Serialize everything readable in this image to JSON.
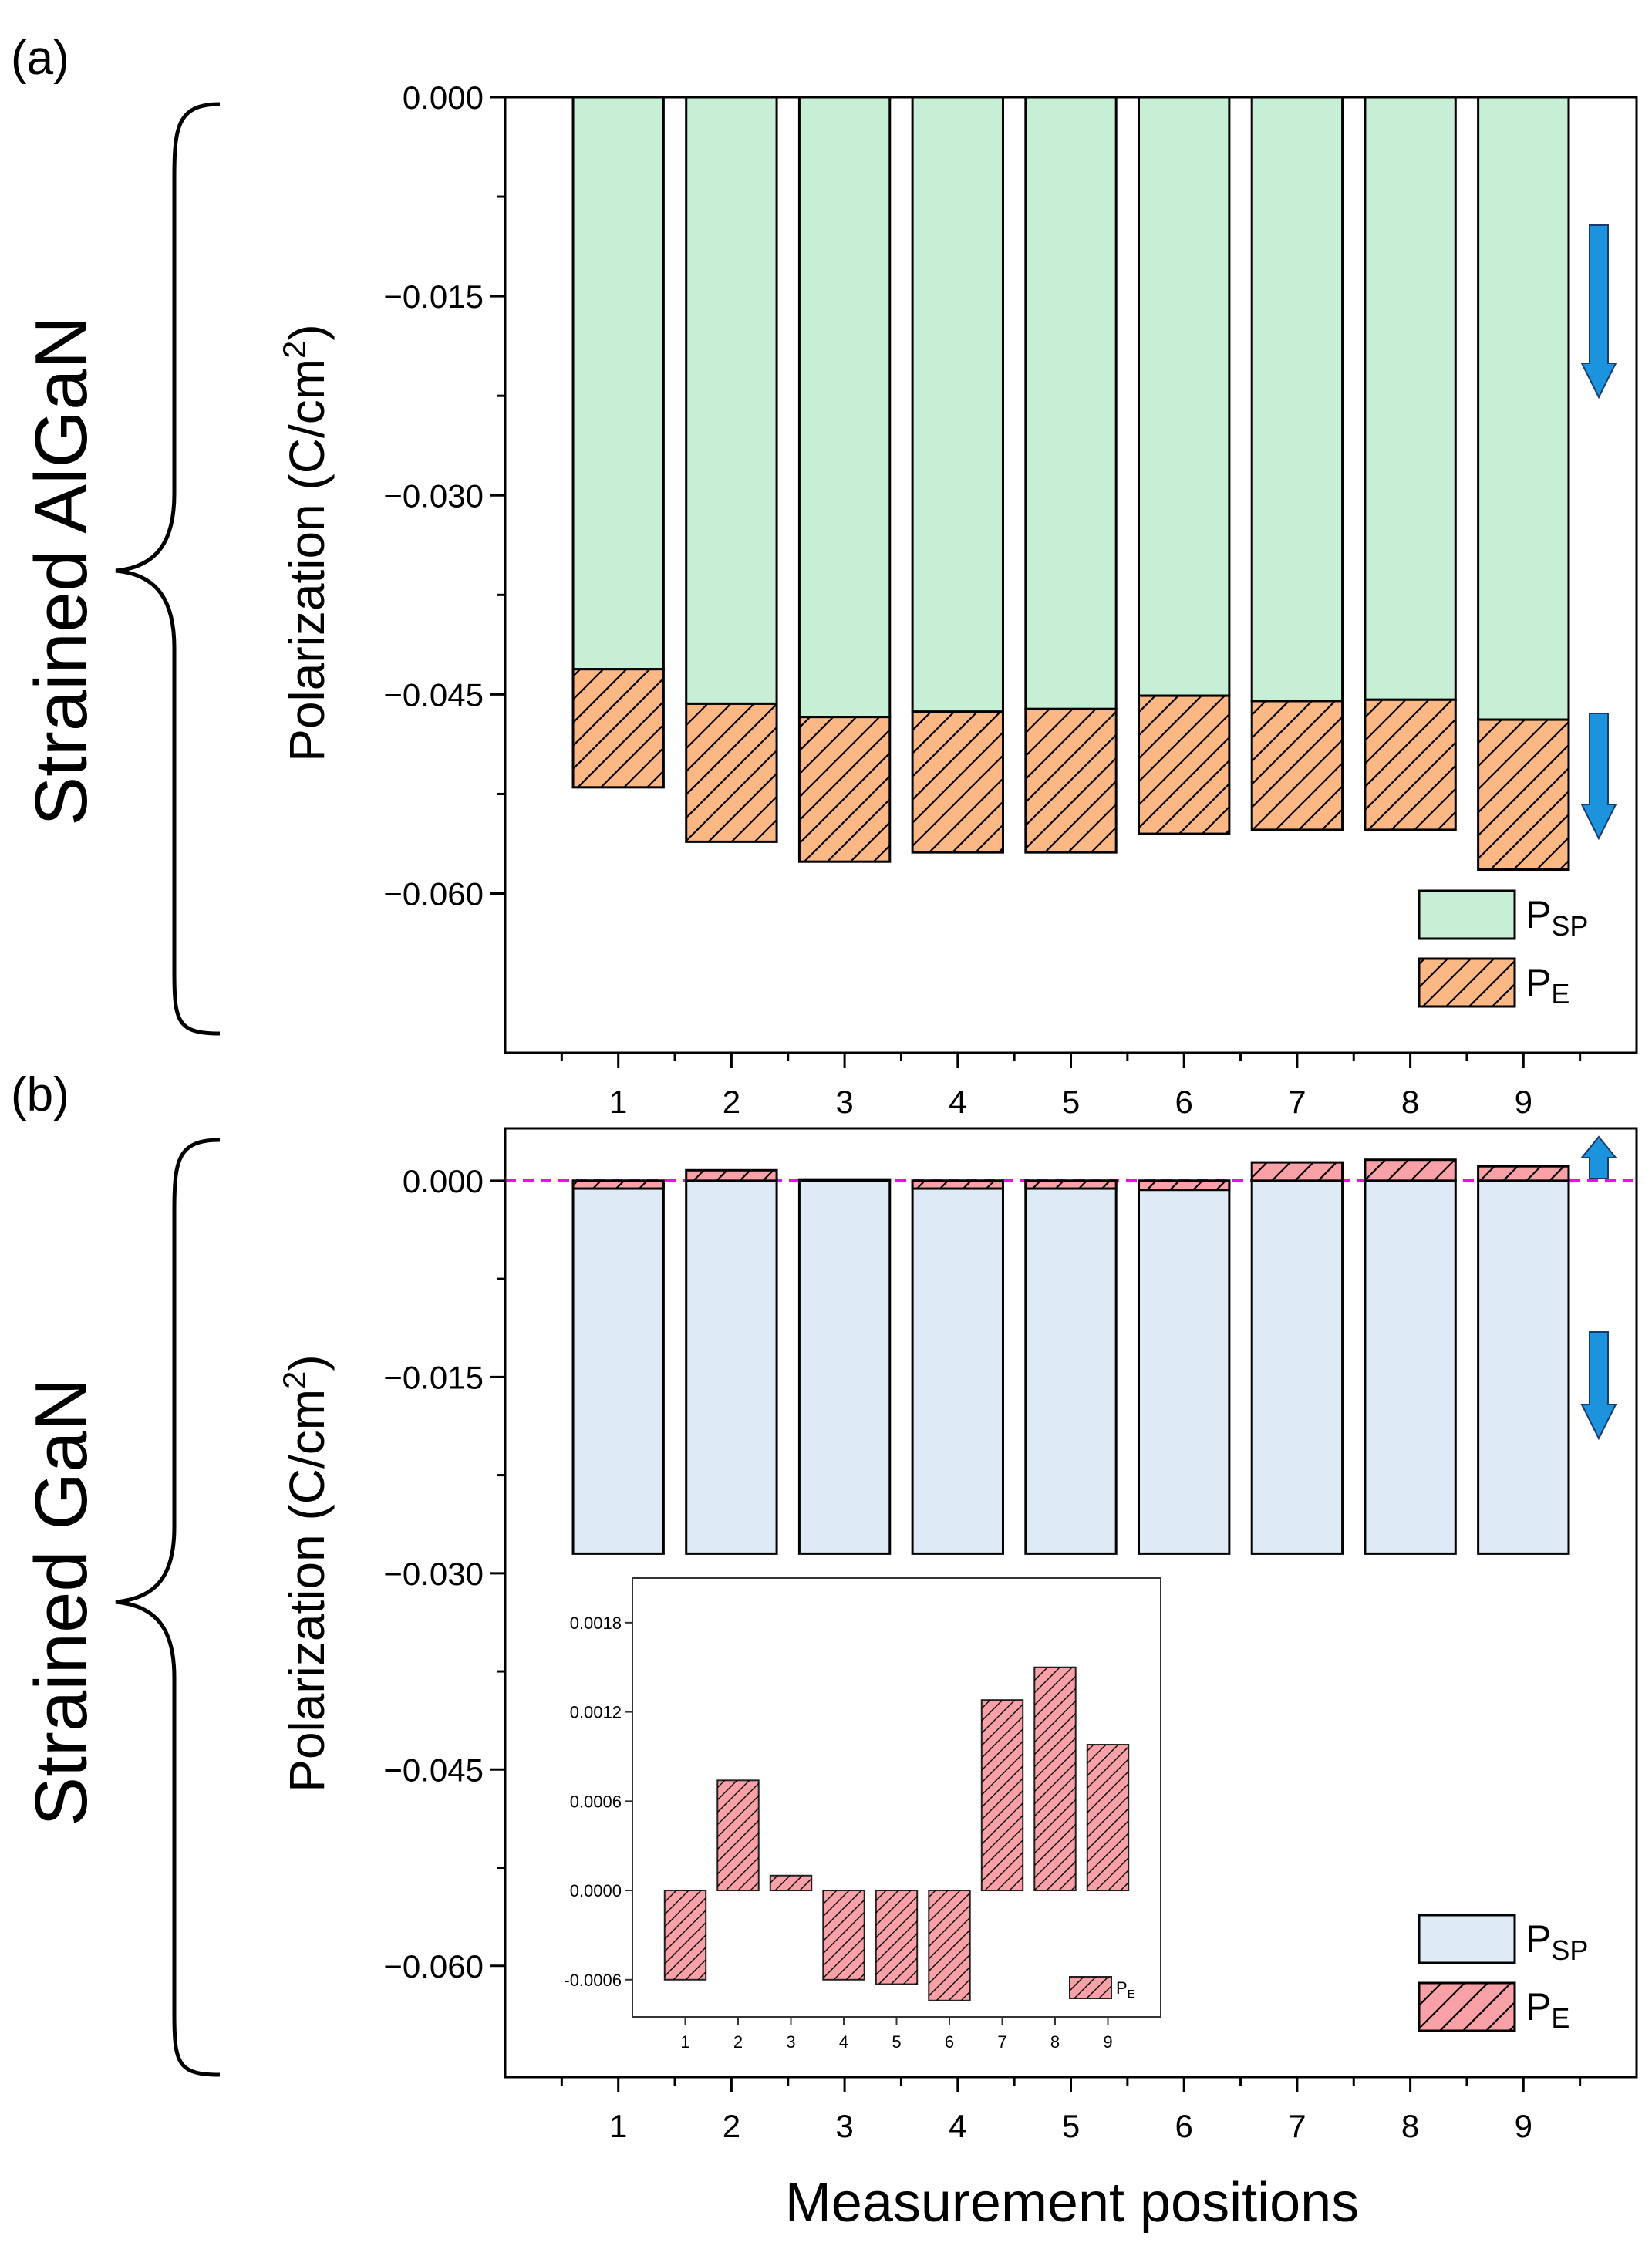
{
  "figure": {
    "panel_labels": [
      "(a)",
      "(b)"
    ],
    "side_labels": [
      "Strained AlGaN",
      "Strained GaN"
    ],
    "xlabel": "Measurement positions"
  },
  "colors": {
    "psp_algan": "#c6efd6",
    "pe_algan": "#fbb784",
    "psp_gan": "#deebf7",
    "pe_gan": "#f9a1a6",
    "pe_inset": "#f9a1a6",
    "arrow": "#1b94dd",
    "zero_line": "#ff00ff"
  },
  "chart_data": [
    {
      "type": "bar",
      "stacked": true,
      "panel": "(a)",
      "ylabel": "Polarization (C/cm",
      "ylabel_sup": "2",
      "ylabel_end": ")",
      "ylim": [
        -0.072,
        0.0
      ],
      "yticks": [
        0.0,
        -0.015,
        -0.03,
        -0.045,
        -0.06
      ],
      "ytick_labels": [
        "0.000",
        "−0.015",
        "−0.030",
        "−0.045",
        "−0.060"
      ],
      "categories": [
        "1",
        "2",
        "3",
        "4",
        "5",
        "6",
        "7",
        "8",
        "9"
      ],
      "series": [
        {
          "name": "P",
          "name_sub": "SP",
          "values": [
            -0.0431,
            -0.0457,
            -0.0467,
            -0.0463,
            -0.0461,
            -0.0451,
            -0.0455,
            -0.0454,
            -0.0469
          ]
        },
        {
          "name": "P",
          "name_sub": "E",
          "values": [
            -0.0089,
            -0.0104,
            -0.0109,
            -0.0106,
            -0.0108,
            -0.0104,
            -0.0097,
            -0.0098,
            -0.0113
          ]
        }
      ],
      "legend_position": "bottom-right",
      "arrows": [
        "down",
        "down"
      ]
    },
    {
      "type": "bar",
      "stacked": true,
      "panel": "(b)",
      "ylabel": "Polarization (C/cm",
      "ylabel_sup": "2",
      "ylabel_end": ")",
      "ylim": [
        -0.0685,
        0.004
      ],
      "yticks": [
        0.0,
        -0.015,
        -0.03,
        -0.045,
        -0.06
      ],
      "ytick_labels": [
        "0.000",
        "−0.015",
        "−0.030",
        "−0.045",
        "−0.060"
      ],
      "categories": [
        "1",
        "2",
        "3",
        "4",
        "5",
        "6",
        "7",
        "8",
        "9"
      ],
      "series": [
        {
          "name": "P",
          "name_sub": "SP",
          "values": [
            -0.0285,
            -0.0285,
            -0.0285,
            -0.0285,
            -0.0285,
            -0.0285,
            -0.0285,
            -0.0285,
            -0.0285
          ]
        },
        {
          "name": "P",
          "name_sub": "E",
          "values": [
            -0.0006,
            0.0008,
            0.0001,
            -0.0006,
            -0.0006,
            -0.0007,
            0.0014,
            0.0016,
            0.0011
          ]
        }
      ],
      "zero_line": true,
      "legend_position": "bottom-right",
      "arrows": [
        "up",
        "down"
      ]
    },
    {
      "type": "bar",
      "panel": "(b) inset",
      "ylim": [
        -0.00085,
        0.0021
      ],
      "yticks": [
        0.0018,
        0.0012,
        0.0006,
        0.0,
        -0.0006
      ],
      "ytick_labels": [
        "0.0018",
        "0.0012",
        "0.0006",
        "0.0000",
        "-0.0006"
      ],
      "categories": [
        "1",
        "2",
        "3",
        "4",
        "5",
        "6",
        "7",
        "8",
        "9"
      ],
      "series": [
        {
          "name": "P",
          "name_sub": "E",
          "values": [
            -0.0006,
            0.00074,
            0.0001,
            -0.0006,
            -0.00063,
            -0.00074,
            0.00128,
            0.0015,
            0.00098
          ]
        }
      ],
      "legend_position": "bottom-right"
    }
  ]
}
